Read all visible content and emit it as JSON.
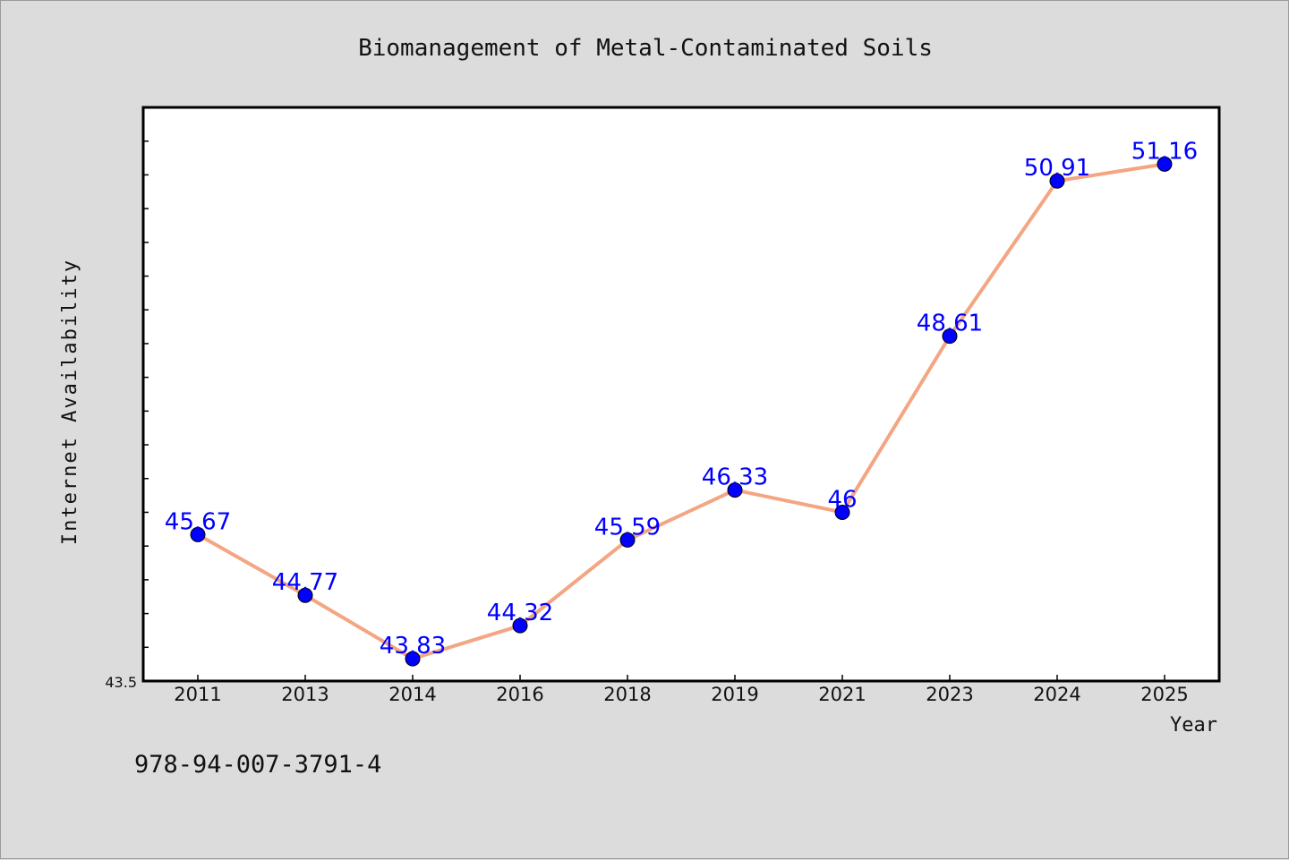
{
  "chart_data": {
    "type": "line",
    "title": "Biomanagement of Metal-Contaminated Soils",
    "xlabel": "Year",
    "ylabel": "Internet Availability",
    "categories": [
      "2011",
      "2013",
      "2014",
      "2016",
      "2018",
      "2019",
      "2021",
      "2023",
      "2024",
      "2025"
    ],
    "series": [
      {
        "values": [
          45.67,
          44.77,
          43.83,
          44.32,
          45.59,
          46.33,
          46,
          48.61,
          50.91,
          51.16
        ]
      }
    ],
    "data_labels": [
      "45.67",
      "44.77",
      "43.83",
      "44.32",
      "45.59",
      "46.33",
      "46",
      "48.61",
      "50.91",
      "51.16"
    ],
    "ylim": [
      43.5,
      52.0
    ],
    "y_min_label": "43.5",
    "grid": false,
    "legend": "none",
    "colors": {
      "line": "#f4a582",
      "marker": "#0000ff",
      "data_label": "#0000ff",
      "plot_background": "#ffffff",
      "page_background": "#dcdcdc"
    }
  },
  "footer": {
    "isbn": "978-94-007-3791-4"
  }
}
